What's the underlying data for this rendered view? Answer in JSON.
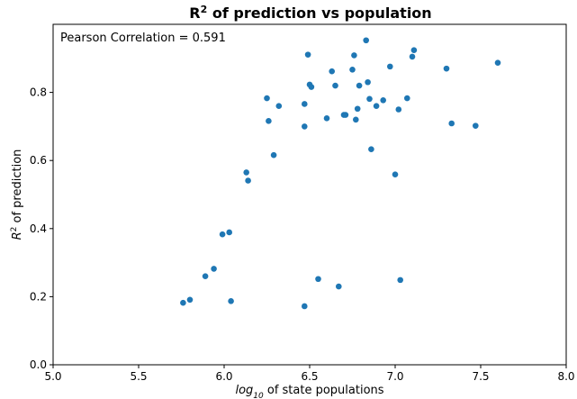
{
  "chart_data": {
    "type": "scatter",
    "title": "R² of prediction vs population",
    "title_parts": {
      "base": "R",
      "sup": "2",
      "rest": " of prediction vs population"
    },
    "xlabel": "log10 of state populations",
    "xlabel_parts": {
      "base": "log",
      "sub": "10",
      "rest": " of state populations"
    },
    "ylabel": "R² of prediction",
    "ylabel_parts": {
      "base": "R",
      "sup": "2",
      "rest": " of prediction"
    },
    "xlim": [
      5.0,
      8.0
    ],
    "ylim": [
      0.0,
      1.0
    ],
    "xticks": [
      "5.0",
      "5.5",
      "6.0",
      "6.5",
      "7.0",
      "7.5",
      "8.0"
    ],
    "yticks": [
      "0.0",
      "0.2",
      "0.4",
      "0.6",
      "0.8"
    ],
    "grid": false,
    "marker_color": "#1f77b4",
    "annotation": "Pearson Correlation = 0.591",
    "points": [
      {
        "x": 5.76,
        "y": 0.182
      },
      {
        "x": 5.8,
        "y": 0.191
      },
      {
        "x": 5.89,
        "y": 0.26
      },
      {
        "x": 5.94,
        "y": 0.282
      },
      {
        "x": 5.99,
        "y": 0.383
      },
      {
        "x": 6.03,
        "y": 0.389
      },
      {
        "x": 6.04,
        "y": 0.187
      },
      {
        "x": 6.13,
        "y": 0.565
      },
      {
        "x": 6.14,
        "y": 0.541
      },
      {
        "x": 6.25,
        "y": 0.783
      },
      {
        "x": 6.26,
        "y": 0.716
      },
      {
        "x": 6.29,
        "y": 0.616
      },
      {
        "x": 6.32,
        "y": 0.76
      },
      {
        "x": 6.47,
        "y": 0.172
      },
      {
        "x": 6.47,
        "y": 0.7
      },
      {
        "x": 6.47,
        "y": 0.766
      },
      {
        "x": 6.49,
        "y": 0.911
      },
      {
        "x": 6.5,
        "y": 0.823
      },
      {
        "x": 6.51,
        "y": 0.816
      },
      {
        "x": 6.55,
        "y": 0.252
      },
      {
        "x": 6.6,
        "y": 0.724
      },
      {
        "x": 6.63,
        "y": 0.862
      },
      {
        "x": 6.65,
        "y": 0.82
      },
      {
        "x": 6.67,
        "y": 0.23
      },
      {
        "x": 6.7,
        "y": 0.734
      },
      {
        "x": 6.71,
        "y": 0.734
      },
      {
        "x": 6.75,
        "y": 0.867
      },
      {
        "x": 6.76,
        "y": 0.909
      },
      {
        "x": 6.77,
        "y": 0.72
      },
      {
        "x": 6.78,
        "y": 0.752
      },
      {
        "x": 6.79,
        "y": 0.82
      },
      {
        "x": 6.83,
        "y": 0.953
      },
      {
        "x": 6.84,
        "y": 0.83
      },
      {
        "x": 6.85,
        "y": 0.781
      },
      {
        "x": 6.86,
        "y": 0.633
      },
      {
        "x": 6.89,
        "y": 0.76
      },
      {
        "x": 6.93,
        "y": 0.777
      },
      {
        "x": 6.97,
        "y": 0.876
      },
      {
        "x": 7.0,
        "y": 0.559
      },
      {
        "x": 7.02,
        "y": 0.75
      },
      {
        "x": 7.03,
        "y": 0.249
      },
      {
        "x": 7.07,
        "y": 0.783
      },
      {
        "x": 7.1,
        "y": 0.905
      },
      {
        "x": 7.11,
        "y": 0.924
      },
      {
        "x": 7.3,
        "y": 0.87
      },
      {
        "x": 7.33,
        "y": 0.709
      },
      {
        "x": 7.47,
        "y": 0.702
      },
      {
        "x": 7.6,
        "y": 0.887
      }
    ]
  }
}
